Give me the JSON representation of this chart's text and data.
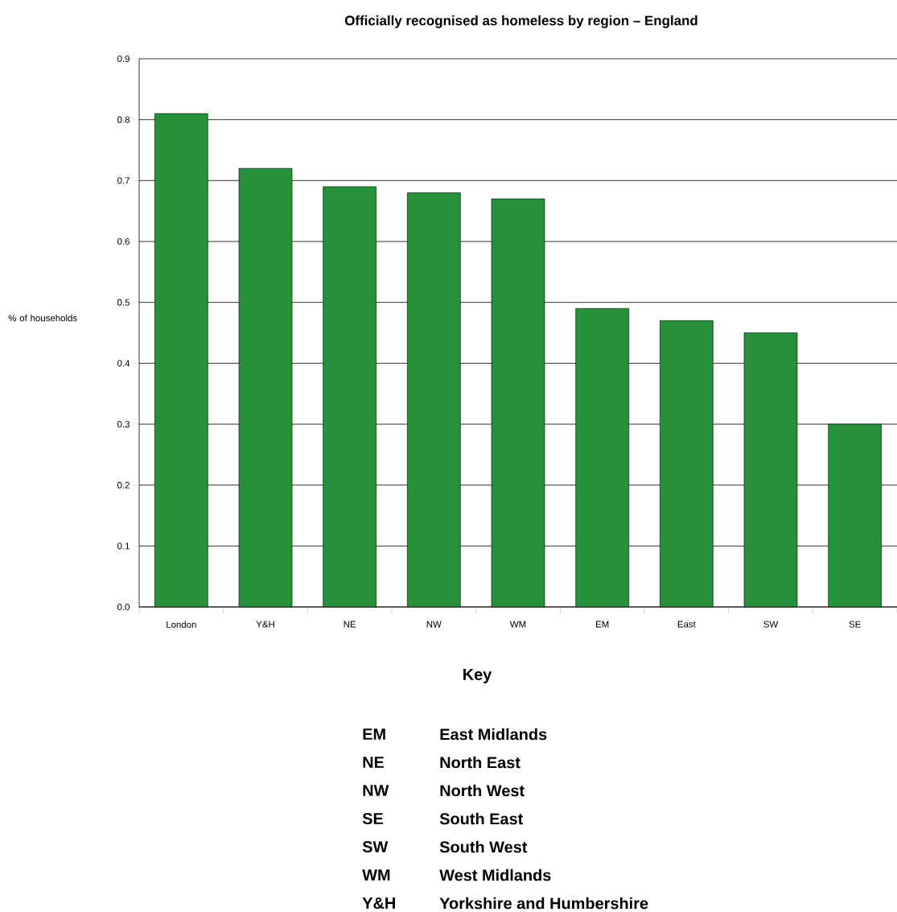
{
  "chart_data": {
    "type": "bar",
    "title": "Officially recognised as homeless by region – England",
    "ylabel": "% of households",
    "categories": [
      "London",
      "Y&H",
      "NE",
      "NW",
      "WM",
      "EM",
      "East",
      "SW",
      "SE"
    ],
    "values": [
      0.81,
      0.72,
      0.69,
      0.68,
      0.67,
      0.49,
      0.47,
      0.45,
      0.3
    ],
    "color": "#27903a",
    "ylim": [
      0,
      0.9
    ],
    "yticks": [
      {
        "value": 0,
        "label": "0.0"
      },
      0.1,
      0.2,
      0.3,
      0.4,
      0.5,
      0.6,
      0.7,
      0.8,
      0.9
    ],
    "grid": "y",
    "annotations": [
      "Key",
      "EM",
      "East Midlands",
      "NE",
      "North East",
      "NW",
      "North West",
      "SE",
      "South East",
      "SW",
      "South West",
      "WM",
      "West Midlands",
      "Y&H",
      "Yorkshire and Humbershire"
    ]
  }
}
